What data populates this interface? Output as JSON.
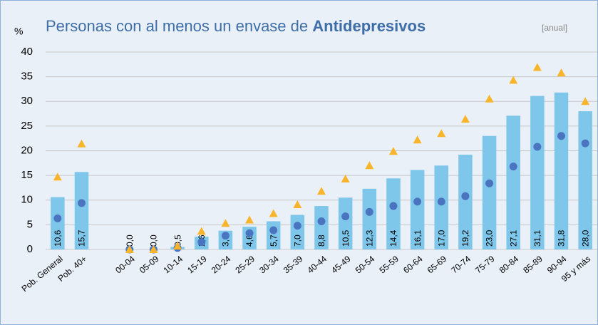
{
  "chart_data": {
    "type": "bar",
    "title": {
      "text": "Personas con al menos un envase de ",
      "bold": "Antidepresivos"
    },
    "subtitle": "[anual]",
    "y_label": "%",
    "categories": [
      "Pob. General",
      "Pob. 40+",
      null,
      "00-04",
      "05-09",
      "10-14",
      "15-19",
      "20-24",
      "25-29",
      "30-34",
      "35-39",
      "40-44",
      "45-49",
      "50-54",
      "55-59",
      "60-64",
      "65-69",
      "70-74",
      "75-79",
      "80-84",
      "85-89",
      "90-94",
      "95 y más"
    ],
    "series": [
      {
        "type": "bar",
        "color": "#7fc7ea",
        "values": [
          10.6,
          15.7,
          null,
          0.0,
          0.0,
          0.5,
          2.6,
          3.8,
          4.6,
          5.7,
          7.0,
          8.8,
          10.5,
          12.3,
          14.4,
          16.1,
          17.0,
          19.2,
          23.0,
          27.1,
          31.1,
          31.8,
          28.0
        ],
        "value_labels": [
          "10,6",
          "15,7",
          null,
          "0,0",
          "0,0",
          "0,5",
          "2,6",
          "3,8",
          "4,6",
          "5,7",
          "7,0",
          "8,8",
          "10,5",
          "12,3",
          "14,4",
          "16,1",
          "17,0",
          "19,2",
          "23,0",
          "27,1",
          "31,1",
          "31,8",
          "28,0"
        ]
      },
      {
        "type": "circle",
        "color": "#4a74c0",
        "values": [
          6.3,
          9.4,
          null,
          0,
          0,
          0.3,
          1.5,
          2.8,
          3.3,
          3.9,
          4.8,
          5.7,
          6.7,
          7.6,
          8.8,
          9.7,
          9.7,
          10.8,
          13.4,
          16.8,
          20.8,
          23.0,
          21.5
        ]
      },
      {
        "type": "triangle",
        "color": "#f8b52c",
        "values": [
          14.7,
          21.4,
          null,
          0,
          0,
          0.7,
          3.7,
          5.3,
          6.0,
          7.3,
          9.1,
          11.8,
          14.3,
          17.0,
          19.9,
          22.2,
          23.5,
          26.4,
          30.5,
          34.3,
          36.9,
          35.8,
          30.0
        ]
      }
    ],
    "ylim": [
      0,
      40
    ],
    "yticks": [
      0,
      5,
      10,
      15,
      20,
      25,
      30,
      35,
      40
    ],
    "grid": true
  }
}
